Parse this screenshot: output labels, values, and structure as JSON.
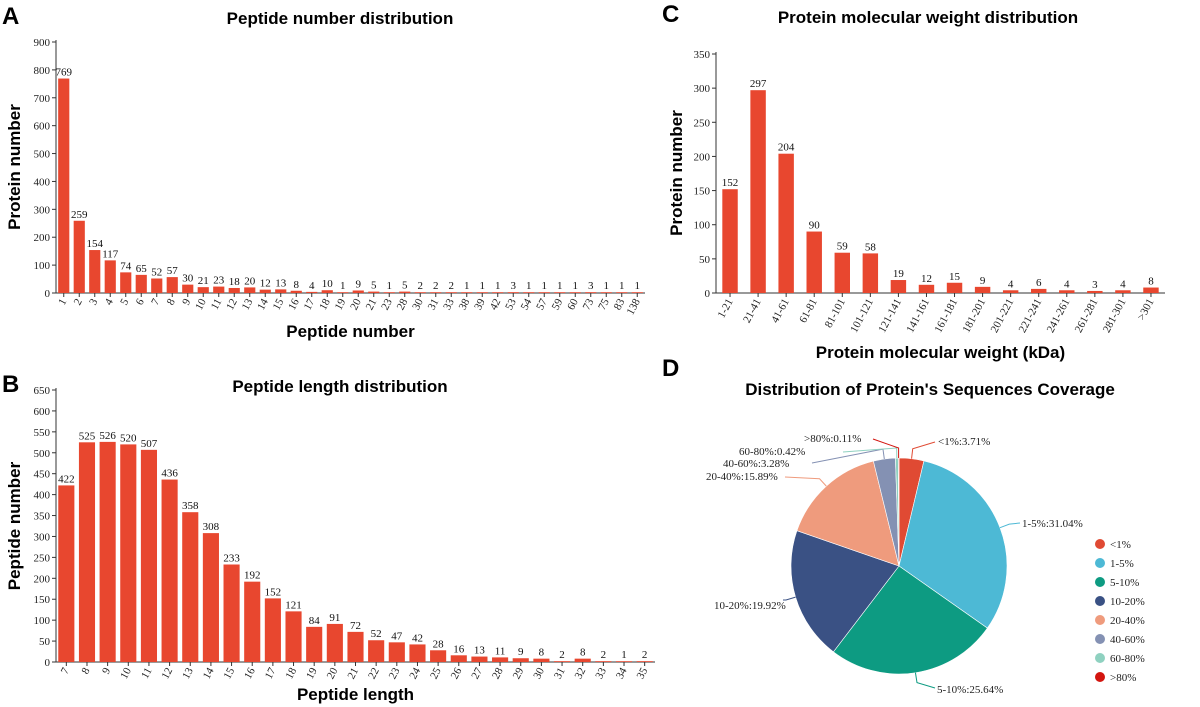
{
  "chart_data": [
    {
      "panel": "A",
      "type": "bar",
      "title": "Peptide number distribution",
      "xlabel": "Peptide number",
      "ylabel": "Protein number",
      "ylim": [
        0,
        900
      ],
      "yticks": [
        0,
        100,
        200,
        300,
        400,
        500,
        600,
        700,
        800,
        900
      ],
      "color": "#e8472f",
      "categories": [
        "1",
        "2",
        "3",
        "4",
        "5",
        "6",
        "7",
        "8",
        "9",
        "10",
        "11",
        "12",
        "13",
        "14",
        "15",
        "16",
        "17",
        "18",
        "19",
        "20",
        "21",
        "23",
        "28",
        "30",
        "31",
        "33",
        "38",
        "39",
        "42",
        "53",
        "54",
        "57",
        "59",
        "60",
        "73",
        "75",
        "83",
        "138"
      ],
      "values": [
        769,
        259,
        154,
        117,
        74,
        65,
        52,
        57,
        30,
        21,
        23,
        18,
        20,
        12,
        13,
        8,
        4,
        10,
        1,
        9,
        5,
        1,
        5,
        2,
        2,
        2,
        1,
        1,
        1,
        3,
        1,
        1,
        1,
        1,
        3,
        1,
        1,
        1
      ]
    },
    {
      "panel": "B",
      "type": "bar",
      "title": "Peptide length distribution",
      "xlabel": "Peptide length",
      "ylabel": "Peptide number",
      "ylim": [
        0,
        650
      ],
      "yticks": [
        0,
        50,
        100,
        150,
        200,
        250,
        300,
        350,
        400,
        450,
        500,
        550,
        600,
        650
      ],
      "color": "#e8472f",
      "categories": [
        "7",
        "8",
        "9",
        "10",
        "11",
        "12",
        "13",
        "14",
        "15",
        "16",
        "17",
        "18",
        "19",
        "20",
        "21",
        "22",
        "23",
        "24",
        "25",
        "26",
        "27",
        "28",
        "29",
        "30",
        "31",
        "32",
        "33",
        "34",
        "35"
      ],
      "values": [
        422,
        525,
        526,
        520,
        507,
        436,
        358,
        308,
        233,
        192,
        152,
        121,
        84,
        91,
        72,
        52,
        47,
        42,
        28,
        16,
        13,
        11,
        9,
        8,
        2,
        8,
        2,
        1,
        2
      ]
    },
    {
      "panel": "C",
      "type": "bar",
      "title": "Protein molecular weight distribution",
      "xlabel": "Protein molecular weight (kDa)",
      "ylabel": "Protein number",
      "ylim": [
        0,
        350
      ],
      "yticks": [
        0,
        50,
        100,
        150,
        200,
        250,
        300,
        350
      ],
      "color": "#e8472f",
      "categories": [
        "1-21",
        "21-41",
        "41-61",
        "61-81",
        "81-101",
        "101-121",
        "121-141",
        "141-161",
        "161-181",
        "181-201",
        "201-221",
        "221-241",
        "241-261",
        "261-281",
        "281-301",
        ">301"
      ],
      "values": [
        152,
        297,
        204,
        90,
        59,
        58,
        19,
        12,
        15,
        9,
        4,
        6,
        4,
        3,
        4,
        8
      ]
    },
    {
      "panel": "D",
      "type": "pie",
      "title": "Distribution of Protein's Sequences Coverage",
      "slices": [
        {
          "name": "<1%",
          "value": 3.71,
          "label": "<1%:3.71%",
          "color": "#e04a33"
        },
        {
          "name": "1-5%",
          "value": 31.04,
          "label": "1-5%:31.04%",
          "color": "#4db9d5"
        },
        {
          "name": "5-10%",
          "value": 25.64,
          "label": "5-10%:25.64%",
          "color": "#0d9b82"
        },
        {
          "name": "10-20%",
          "value": 19.92,
          "label": "10-20%:19.92%",
          "color": "#3a5184"
        },
        {
          "name": "20-40%",
          "value": 15.89,
          "label": "20-40%:15.89%",
          "color": "#ef9b7d"
        },
        {
          "name": "40-60%",
          "value": 3.28,
          "label": "40-60%:3.28%",
          "color": "#8491b3"
        },
        {
          "name": "60-80%",
          "value": 0.42,
          "label": "60-80%:0.42%",
          "color": "#8fd1c0"
        },
        {
          "name": ">80%",
          "value": 0.11,
          "label": ">80%:0.11%",
          "color": "#d3150f"
        }
      ],
      "legend_position": "right"
    }
  ]
}
